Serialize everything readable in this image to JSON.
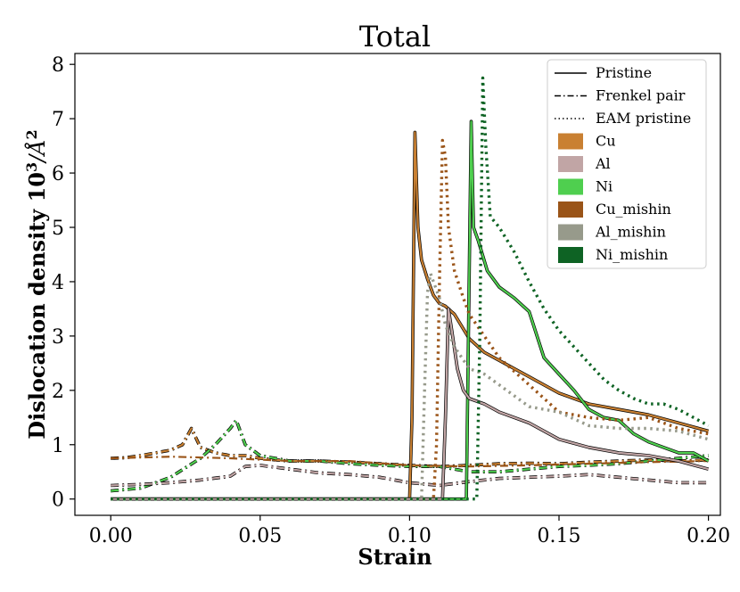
{
  "chart_data": {
    "type": "line",
    "title": "Total",
    "xlabel": "Strain",
    "ylabel_main": "Dislocation density 10",
    "ylabel_sup": "3",
    "ylabel_unit": "/Å",
    "ylabel_unit_sup": "2",
    "xlim": [
      -0.012,
      0.204
    ],
    "ylim": [
      -0.3,
      8.2
    ],
    "xticks": [
      0.0,
      0.05,
      0.1,
      0.15,
      0.2
    ],
    "xtick_labels": [
      "0.00",
      "0.05",
      "0.10",
      "0.15",
      "0.20"
    ],
    "yticks": [
      0,
      1,
      2,
      3,
      4,
      5,
      6,
      7,
      8
    ],
    "ytick_labels": [
      "0",
      "1",
      "2",
      "3",
      "4",
      "5",
      "6",
      "7",
      "8"
    ],
    "legend": {
      "placement": "top-right",
      "styles": [
        {
          "label": "Pristine",
          "dash": "solid"
        },
        {
          "label": "Frenkel pair",
          "dash": "dashdot"
        },
        {
          "label": "EAM pristine",
          "dash": "dotted"
        }
      ],
      "materials": [
        {
          "label": "Cu",
          "color": "#c98032"
        },
        {
          "label": "Al",
          "color": "#c1a5a5"
        },
        {
          "label": "Ni",
          "color": "#4fcf4f"
        },
        {
          "label": "Cu_mishin",
          "color": "#9a5418"
        },
        {
          "label": "Al_mishin",
          "color": "#979a8b"
        },
        {
          "label": "Ni_mishin",
          "color": "#0e6324"
        }
      ]
    },
    "series": [
      {
        "name": "Cu Frenkel pair",
        "material": "Cu",
        "color": "#c98032",
        "style": "dashdot",
        "outline": true,
        "x": [
          0,
          0.005,
          0.01,
          0.015,
          0.02,
          0.024,
          0.027,
          0.03,
          0.035,
          0.04,
          0.045,
          0.05,
          0.055,
          0.06,
          0.07,
          0.08,
          0.09,
          0.1,
          0.11,
          0.12,
          0.13,
          0.14,
          0.15,
          0.16,
          0.17,
          0.18,
          0.19,
          0.2
        ],
        "y": [
          0.75,
          0.76,
          0.8,
          0.85,
          0.9,
          1.0,
          1.3,
          0.95,
          0.85,
          0.8,
          0.8,
          0.75,
          0.72,
          0.7,
          0.7,
          0.68,
          0.65,
          0.62,
          0.6,
          0.62,
          0.65,
          0.66,
          0.65,
          0.68,
          0.7,
          0.72,
          0.7,
          0.72
        ]
      },
      {
        "name": "Ni Frenkel pair",
        "material": "Ni",
        "color": "#4fcf4f",
        "style": "dashdot",
        "outline": true,
        "x": [
          0,
          0.01,
          0.02,
          0.03,
          0.035,
          0.04,
          0.042,
          0.045,
          0.05,
          0.06,
          0.07,
          0.08,
          0.09,
          0.1,
          0.11,
          0.12,
          0.13,
          0.14,
          0.15,
          0.16,
          0.17,
          0.18,
          0.19,
          0.2
        ],
        "y": [
          0.15,
          0.2,
          0.4,
          0.75,
          1.0,
          1.3,
          1.45,
          1.0,
          0.8,
          0.7,
          0.7,
          0.65,
          0.62,
          0.6,
          0.6,
          0.5,
          0.5,
          0.55,
          0.6,
          0.62,
          0.65,
          0.7,
          0.75,
          0.8
        ]
      },
      {
        "name": "Al Frenkel pair",
        "material": "Al",
        "color": "#c1a5a5",
        "style": "dashdot",
        "outline": true,
        "x": [
          0,
          0.01,
          0.02,
          0.03,
          0.04,
          0.045,
          0.05,
          0.06,
          0.07,
          0.08,
          0.09,
          0.1,
          0.11,
          0.12,
          0.13,
          0.14,
          0.15,
          0.16,
          0.17,
          0.18,
          0.19,
          0.2
        ],
        "y": [
          0.25,
          0.27,
          0.3,
          0.35,
          0.42,
          0.6,
          0.62,
          0.55,
          0.48,
          0.45,
          0.4,
          0.3,
          0.25,
          0.32,
          0.38,
          0.4,
          0.42,
          0.45,
          0.4,
          0.35,
          0.3,
          0.3
        ]
      },
      {
        "name": "Cu_mishin Frenkel pair",
        "material": "Cu_mishin",
        "color": "#9a5418",
        "style": "dashdot",
        "outline": false,
        "x": [
          0,
          0.02,
          0.04,
          0.06,
          0.08,
          0.1,
          0.12,
          0.14,
          0.16,
          0.18,
          0.2
        ],
        "y": [
          0.75,
          0.78,
          0.75,
          0.7,
          0.7,
          0.62,
          0.6,
          0.62,
          0.65,
          0.68,
          0.7
        ]
      },
      {
        "name": "Cu Pristine",
        "material": "Cu",
        "color": "#c98032",
        "style": "solid",
        "outline": true,
        "x": [
          0,
          0.02,
          0.04,
          0.06,
          0.08,
          0.1,
          0.1008,
          0.1018,
          0.1028,
          0.104,
          0.106,
          0.108,
          0.11,
          0.112,
          0.115,
          0.12,
          0.125,
          0.13,
          0.14,
          0.15,
          0.16,
          0.17,
          0.18,
          0.19,
          0.2
        ],
        "y": [
          0,
          0,
          0,
          0,
          0,
          0,
          1.5,
          6.75,
          5.0,
          4.4,
          4.05,
          3.75,
          3.6,
          3.55,
          3.4,
          2.95,
          2.7,
          2.55,
          2.25,
          1.95,
          1.75,
          1.65,
          1.55,
          1.4,
          1.25
        ]
      },
      {
        "name": "Ni Pristine",
        "material": "Ni",
        "color": "#4fcf4f",
        "style": "solid",
        "outline": true,
        "x": [
          0,
          0.02,
          0.04,
          0.06,
          0.08,
          0.1,
          0.119,
          0.1198,
          0.1206,
          0.1214,
          0.123,
          0.126,
          0.13,
          0.135,
          0.14,
          0.145,
          0.15,
          0.155,
          0.16,
          0.165,
          0.17,
          0.175,
          0.18,
          0.185,
          0.19,
          0.195,
          0.2
        ],
        "y": [
          0,
          0,
          0,
          0,
          0,
          0,
          0,
          3.5,
          6.95,
          5.0,
          4.75,
          4.2,
          3.9,
          3.7,
          3.45,
          2.6,
          2.3,
          2.0,
          1.65,
          1.5,
          1.45,
          1.2,
          1.05,
          0.95,
          0.85,
          0.85,
          0.7
        ]
      },
      {
        "name": "Al Pristine",
        "material": "Al",
        "color": "#c1a5a5",
        "style": "solid",
        "outline": true,
        "x": [
          0,
          0.02,
          0.04,
          0.06,
          0.08,
          0.1,
          0.111,
          0.112,
          0.113,
          0.114,
          0.116,
          0.118,
          0.12,
          0.125,
          0.13,
          0.14,
          0.15,
          0.16,
          0.17,
          0.18,
          0.19,
          0.2
        ],
        "y": [
          0,
          0,
          0,
          0,
          0,
          0,
          0,
          1.5,
          3.5,
          3.15,
          2.4,
          2.0,
          1.85,
          1.75,
          1.6,
          1.4,
          1.1,
          0.95,
          0.85,
          0.8,
          0.7,
          0.55
        ]
      },
      {
        "name": "Cu_mishin EAM pristine",
        "material": "Cu_mishin",
        "color": "#9a5418",
        "style": "dotted",
        "outline": false,
        "x": [
          0,
          0.02,
          0.04,
          0.06,
          0.08,
          0.1,
          0.108,
          0.109,
          0.11,
          0.111,
          0.112,
          0.113,
          0.115,
          0.118,
          0.12,
          0.125,
          0.13,
          0.14,
          0.15,
          0.16,
          0.17,
          0.18,
          0.19,
          0.2
        ],
        "y": [
          0,
          0,
          0,
          0,
          0,
          0,
          0,
          1.0,
          4.0,
          6.6,
          6.3,
          5.0,
          4.2,
          3.7,
          3.4,
          3.0,
          2.6,
          2.1,
          1.6,
          1.5,
          1.45,
          1.5,
          1.3,
          1.2
        ]
      },
      {
        "name": "Al_mishin EAM pristine",
        "material": "Al_mishin",
        "color": "#979a8b",
        "style": "dotted",
        "outline": false,
        "x": [
          0,
          0.02,
          0.04,
          0.06,
          0.08,
          0.1,
          0.104,
          0.105,
          0.106,
          0.107,
          0.108,
          0.11,
          0.112,
          0.115,
          0.12,
          0.125,
          0.13,
          0.14,
          0.15,
          0.16,
          0.17,
          0.18,
          0.19,
          0.2
        ],
        "y": [
          0,
          0,
          0,
          0,
          0,
          0,
          0,
          2.0,
          3.8,
          4.15,
          4.0,
          3.7,
          3.2,
          2.8,
          2.4,
          2.3,
          2.1,
          1.7,
          1.6,
          1.35,
          1.3,
          1.3,
          1.25,
          1.1
        ]
      },
      {
        "name": "Ni_mishin EAM pristine",
        "material": "Ni_mishin",
        "color": "#0e6324",
        "style": "dotted",
        "outline": false,
        "x": [
          0,
          0.02,
          0.04,
          0.06,
          0.08,
          0.1,
          0.12,
          0.1225,
          0.1235,
          0.1245,
          0.1255,
          0.127,
          0.13,
          0.135,
          0.14,
          0.145,
          0.15,
          0.155,
          0.16,
          0.165,
          0.17,
          0.175,
          0.18,
          0.185,
          0.19,
          0.195,
          0.2
        ],
        "y": [
          0,
          0,
          0,
          0,
          0,
          0,
          0,
          0,
          3.0,
          7.75,
          6.5,
          5.2,
          5.0,
          4.55,
          4.0,
          3.5,
          3.1,
          2.8,
          2.5,
          2.2,
          2.0,
          1.85,
          1.75,
          1.75,
          1.65,
          1.5,
          1.35
        ]
      }
    ]
  }
}
